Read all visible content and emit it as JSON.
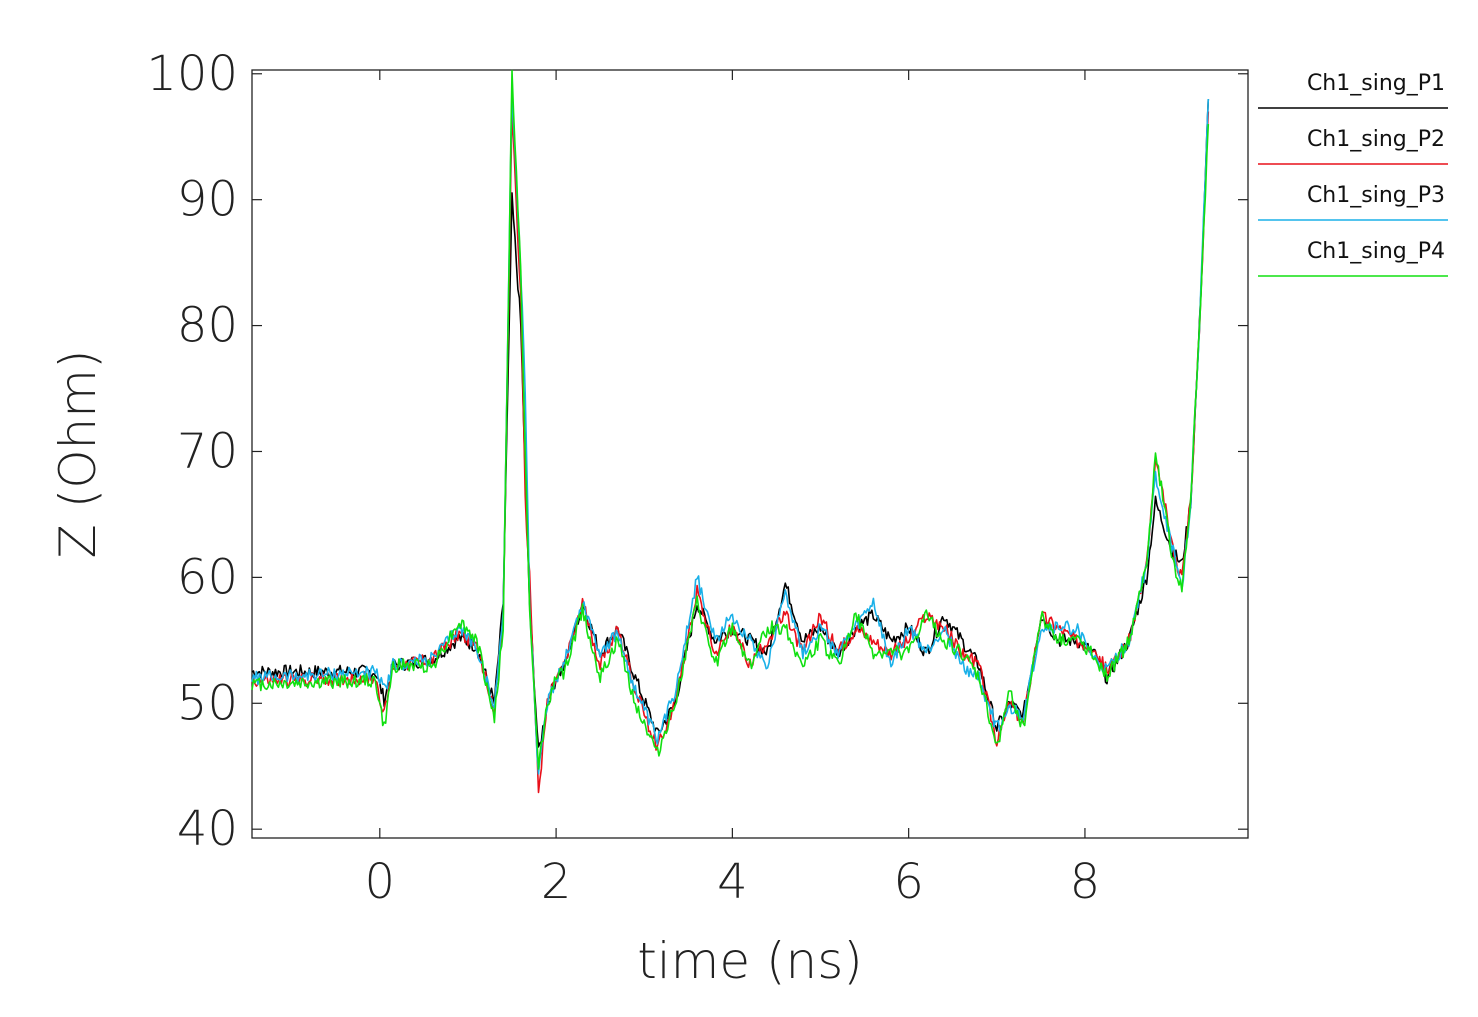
{
  "chart_data": {
    "type": "line",
    "title": "",
    "xlabel": "time (ns)",
    "ylabel": "Z (Ohm)",
    "xlim": [
      -1.45,
      9.85
    ],
    "ylim": [
      39.3,
      100.3
    ],
    "xticks": [
      0,
      2,
      4,
      6,
      8
    ],
    "yticks": [
      40,
      50,
      60,
      70,
      80,
      90,
      100
    ],
    "grid": false,
    "legend_position": "right",
    "series": [
      {
        "name": "Ch1_sing_P1",
        "color": "#000000",
        "points": [
          [
            -1.45,
            52.5
          ],
          [
            -0.05,
            52.5
          ],
          [
            0.05,
            50.3
          ],
          [
            0.15,
            53
          ],
          [
            0.6,
            53.5
          ],
          [
            0.9,
            55.2
          ],
          [
            1.1,
            54.5
          ],
          [
            1.3,
            50
          ],
          [
            1.4,
            58
          ],
          [
            1.5,
            90
          ],
          [
            1.6,
            80
          ],
          [
            1.65,
            68
          ],
          [
            1.7,
            58
          ],
          [
            1.8,
            46
          ],
          [
            1.9,
            50
          ],
          [
            2.0,
            52
          ],
          [
            2.1,
            53
          ],
          [
            2.3,
            58
          ],
          [
            2.5,
            54
          ],
          [
            2.7,
            56
          ],
          [
            2.9,
            52
          ],
          [
            3.15,
            47.5
          ],
          [
            3.35,
            50
          ],
          [
            3.6,
            58
          ],
          [
            3.8,
            55
          ],
          [
            4.0,
            56
          ],
          [
            4.2,
            55
          ],
          [
            4.4,
            54
          ],
          [
            4.6,
            59.5
          ],
          [
            4.8,
            55
          ],
          [
            5.0,
            56
          ],
          [
            5.2,
            54
          ],
          [
            5.4,
            56
          ],
          [
            5.6,
            57
          ],
          [
            5.8,
            55
          ],
          [
            6.0,
            56
          ],
          [
            6.2,
            54
          ],
          [
            6.4,
            57
          ],
          [
            6.6,
            55
          ],
          [
            6.8,
            53
          ],
          [
            7.0,
            48
          ],
          [
            7.15,
            50
          ],
          [
            7.3,
            49
          ],
          [
            7.5,
            57
          ],
          [
            7.7,
            55
          ],
          [
            7.9,
            55
          ],
          [
            8.1,
            54
          ],
          [
            8.25,
            52
          ],
          [
            8.5,
            55
          ],
          [
            8.7,
            60
          ],
          [
            8.8,
            66
          ],
          [
            8.9,
            64
          ],
          [
            9.0,
            62
          ],
          [
            9.1,
            61
          ],
          [
            9.2,
            66
          ],
          [
            9.3,
            80
          ],
          [
            9.4,
            98
          ]
        ]
      },
      {
        "name": "Ch1_sing_P2",
        "color": "#e8101a",
        "points": [
          [
            -1.45,
            51.8
          ],
          [
            -0.05,
            52
          ],
          [
            0.05,
            49
          ],
          [
            0.15,
            53
          ],
          [
            0.6,
            53.5
          ],
          [
            0.9,
            55.6
          ],
          [
            1.1,
            54.5
          ],
          [
            1.3,
            49.5
          ],
          [
            1.4,
            57
          ],
          [
            1.5,
            97
          ],
          [
            1.6,
            82
          ],
          [
            1.65,
            66
          ],
          [
            1.7,
            60
          ],
          [
            1.8,
            43
          ],
          [
            1.9,
            50
          ],
          [
            2.0,
            52
          ],
          [
            2.1,
            53
          ],
          [
            2.3,
            58
          ],
          [
            2.5,
            53
          ],
          [
            2.7,
            56
          ],
          [
            2.9,
            51
          ],
          [
            3.15,
            46.5
          ],
          [
            3.35,
            50
          ],
          [
            3.6,
            59
          ],
          [
            3.8,
            54
          ],
          [
            4.0,
            56
          ],
          [
            4.2,
            53
          ],
          [
            4.4,
            55
          ],
          [
            4.6,
            57
          ],
          [
            4.8,
            54
          ],
          [
            5.0,
            57
          ],
          [
            5.2,
            54
          ],
          [
            5.4,
            56
          ],
          [
            5.6,
            55
          ],
          [
            5.8,
            54
          ],
          [
            6.0,
            55
          ],
          [
            6.2,
            57
          ],
          [
            6.4,
            56
          ],
          [
            6.6,
            54
          ],
          [
            6.8,
            53
          ],
          [
            7.0,
            47
          ],
          [
            7.15,
            50
          ],
          [
            7.3,
            48.5
          ],
          [
            7.5,
            57
          ],
          [
            7.7,
            56
          ],
          [
            7.9,
            55
          ],
          [
            8.1,
            54.5
          ],
          [
            8.25,
            52.5
          ],
          [
            8.5,
            55
          ],
          [
            8.7,
            61
          ],
          [
            8.8,
            69
          ],
          [
            8.9,
            66
          ],
          [
            9.0,
            62
          ],
          [
            9.1,
            60
          ],
          [
            9.2,
            66
          ],
          [
            9.3,
            80
          ],
          [
            9.4,
            97
          ]
        ]
      },
      {
        "name": "Ch1_sing_P3",
        "color": "#1ab0e8",
        "points": [
          [
            -1.45,
            52
          ],
          [
            -0.05,
            52.5
          ],
          [
            0.05,
            51
          ],
          [
            0.15,
            53
          ],
          [
            0.6,
            53.5
          ],
          [
            0.9,
            56
          ],
          [
            1.1,
            54.5
          ],
          [
            1.3,
            49.5
          ],
          [
            1.4,
            57.5
          ],
          [
            1.5,
            99
          ],
          [
            1.6,
            84
          ],
          [
            1.65,
            75
          ],
          [
            1.7,
            58
          ],
          [
            1.8,
            44
          ],
          [
            1.9,
            50
          ],
          [
            2.0,
            52
          ],
          [
            2.1,
            53.5
          ],
          [
            2.3,
            58
          ],
          [
            2.5,
            54
          ],
          [
            2.7,
            55.5
          ],
          [
            2.9,
            51
          ],
          [
            3.15,
            47
          ],
          [
            3.35,
            51
          ],
          [
            3.6,
            60
          ],
          [
            3.8,
            55
          ],
          [
            4.0,
            57
          ],
          [
            4.2,
            55
          ],
          [
            4.4,
            53
          ],
          [
            4.6,
            59
          ],
          [
            4.8,
            54
          ],
          [
            5.0,
            56
          ],
          [
            5.2,
            54
          ],
          [
            5.4,
            56
          ],
          [
            5.6,
            58
          ],
          [
            5.8,
            53
          ],
          [
            6.0,
            56
          ],
          [
            6.2,
            54
          ],
          [
            6.4,
            56
          ],
          [
            6.6,
            53
          ],
          [
            6.8,
            52
          ],
          [
            7.0,
            48
          ],
          [
            7.15,
            49.5
          ],
          [
            7.3,
            49
          ],
          [
            7.5,
            56
          ],
          [
            7.7,
            56
          ],
          [
            7.9,
            56
          ],
          [
            8.1,
            53.5
          ],
          [
            8.25,
            52.5
          ],
          [
            8.5,
            55
          ],
          [
            8.7,
            61
          ],
          [
            8.8,
            68
          ],
          [
            8.9,
            65
          ],
          [
            9.0,
            62
          ],
          [
            9.1,
            59
          ],
          [
            9.2,
            66
          ],
          [
            9.3,
            80
          ],
          [
            9.4,
            98
          ]
        ]
      },
      {
        "name": "Ch1_sing_P4",
        "color": "#10e010",
        "points": [
          [
            -1.45,
            51.5
          ],
          [
            -0.05,
            51.8
          ],
          [
            0.05,
            48
          ],
          [
            0.15,
            53
          ],
          [
            0.6,
            53
          ],
          [
            0.9,
            56.5
          ],
          [
            1.1,
            55
          ],
          [
            1.3,
            48.8
          ],
          [
            1.4,
            56
          ],
          [
            1.5,
            100
          ],
          [
            1.6,
            84
          ],
          [
            1.65,
            70
          ],
          [
            1.7,
            57
          ],
          [
            1.8,
            45
          ],
          [
            1.9,
            50
          ],
          [
            2.0,
            52
          ],
          [
            2.1,
            52.5
          ],
          [
            2.3,
            57.5
          ],
          [
            2.5,
            52
          ],
          [
            2.7,
            55
          ],
          [
            2.9,
            50
          ],
          [
            3.15,
            46
          ],
          [
            3.35,
            50
          ],
          [
            3.6,
            58
          ],
          [
            3.8,
            53
          ],
          [
            4.0,
            56
          ],
          [
            4.2,
            53
          ],
          [
            4.4,
            56
          ],
          [
            4.6,
            56
          ],
          [
            4.8,
            53
          ],
          [
            5.0,
            55
          ],
          [
            5.2,
            53
          ],
          [
            5.4,
            57
          ],
          [
            5.6,
            54
          ],
          [
            5.8,
            54
          ],
          [
            6.0,
            54
          ],
          [
            6.2,
            57
          ],
          [
            6.4,
            55
          ],
          [
            6.6,
            54
          ],
          [
            6.8,
            52
          ],
          [
            7.0,
            46.5
          ],
          [
            7.15,
            51
          ],
          [
            7.3,
            48
          ],
          [
            7.5,
            57
          ],
          [
            7.7,
            55
          ],
          [
            7.9,
            55
          ],
          [
            8.1,
            54
          ],
          [
            8.25,
            52
          ],
          [
            8.5,
            55
          ],
          [
            8.7,
            61
          ],
          [
            8.8,
            69.5
          ],
          [
            8.9,
            66
          ],
          [
            9.0,
            61
          ],
          [
            9.1,
            59
          ],
          [
            9.2,
            66
          ],
          [
            9.3,
            80
          ],
          [
            9.4,
            96
          ]
        ]
      }
    ]
  }
}
